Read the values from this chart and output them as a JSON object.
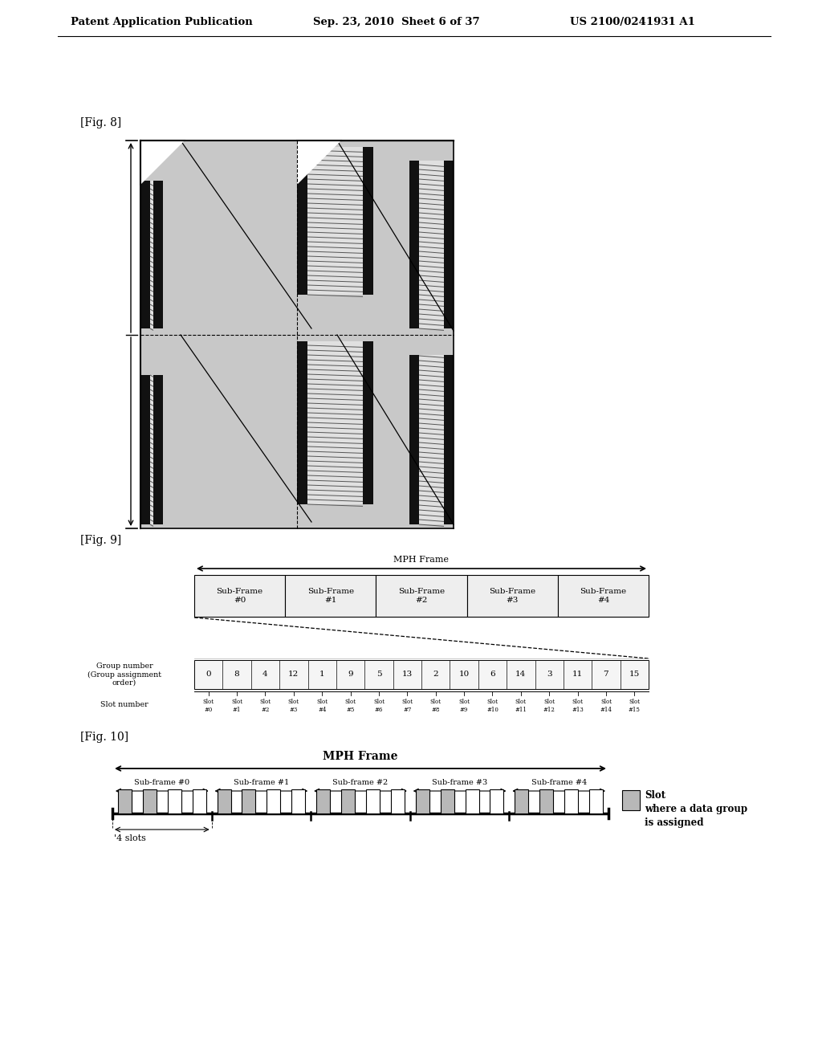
{
  "header_left": "Patent Application Publication",
  "header_mid": "Sep. 23, 2010  Sheet 6 of 37",
  "header_right": "US 2100/0241931 A1",
  "fig8_label": "[Fig. 8]",
  "fig9_label": "[Fig. 9]",
  "fig10_label": "[Fig. 10]",
  "fig9_title": "MPH Frame",
  "fig9_subframes": [
    "Sub-Frame\n#0",
    "Sub-Frame\n#1",
    "Sub-Frame\n#2",
    "Sub-Frame\n#3",
    "Sub-Frame\n#4"
  ],
  "fig9_group_label": "Group number\n(Group assignment\norder)",
  "fig9_slot_label": "Slot number",
  "fig9_groups": [
    0,
    8,
    4,
    12,
    1,
    9,
    5,
    13,
    2,
    10,
    6,
    14,
    3,
    11,
    7,
    15
  ],
  "fig9_slots": [
    "Slot\n#0",
    "Slot\n#1",
    "Slot\n#2",
    "Slot\n#3",
    "Slot\n#4",
    "Slot\n#5",
    "Slot\n#6",
    "Slot\n#7",
    "Slot\n#8",
    "Slot\n#9",
    "Slot\n#10",
    "Slot\n#11",
    "Slot\n#12",
    "Slot\n#13",
    "Slot\n#14",
    "Slot\n#15"
  ],
  "fig10_title": "MPH Frame",
  "fig10_subframes": [
    "Sub-frame #0",
    "Sub-frame #1",
    "Sub-frame #2",
    "Sub-frame #3",
    "Sub-frame #4"
  ],
  "fig10_legend": "Slot\nwhere a data group\nis assigned",
  "fig10_slots_label": "'4 slots",
  "bg_color": "#ffffff"
}
